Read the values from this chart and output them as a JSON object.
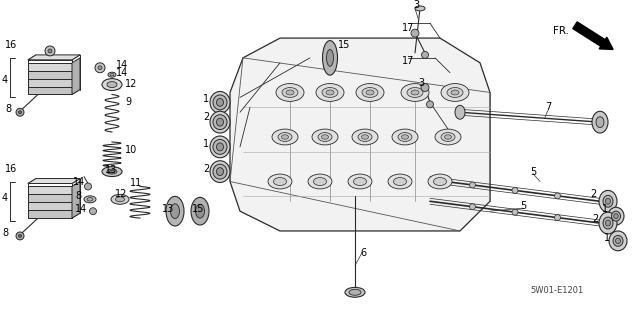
{
  "bg_color": "#ffffff",
  "line_color": "#2a2a2a",
  "diagram_code": "5W01-E1201",
  "figsize": [
    6.4,
    3.19
  ],
  "dpi": 100
}
